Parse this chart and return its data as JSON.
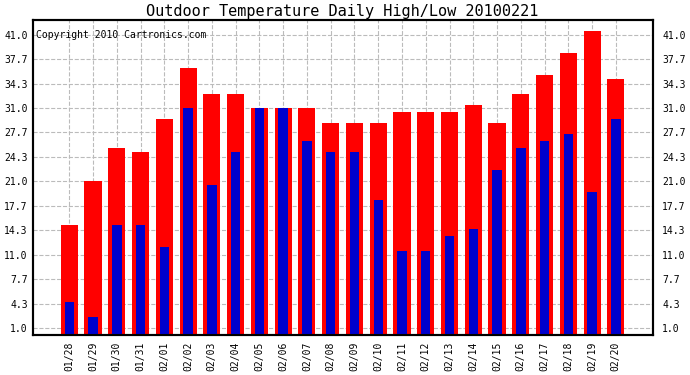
{
  "title": "Outdoor Temperature Daily High/Low 20100221",
  "copyright": "Copyright 2010 Cartronics.com",
  "dates": [
    "01/28",
    "01/29",
    "01/30",
    "01/31",
    "02/01",
    "02/02",
    "02/03",
    "02/04",
    "02/05",
    "02/06",
    "02/07",
    "02/08",
    "02/09",
    "02/10",
    "02/11",
    "02/12",
    "02/13",
    "02/14",
    "02/15",
    "02/16",
    "02/17",
    "02/18",
    "02/19",
    "02/20"
  ],
  "highs": [
    15.0,
    21.0,
    25.5,
    25.0,
    29.5,
    36.5,
    33.0,
    33.0,
    31.0,
    31.0,
    31.0,
    29.0,
    29.0,
    29.0,
    30.5,
    30.5,
    30.5,
    31.5,
    29.0,
    33.0,
    35.5,
    38.5,
    41.5,
    35.0
  ],
  "lows": [
    4.5,
    2.5,
    15.0,
    15.0,
    12.0,
    31.0,
    20.5,
    25.0,
    31.0,
    31.0,
    26.5,
    25.0,
    25.0,
    18.5,
    11.5,
    11.5,
    13.5,
    14.5,
    22.5,
    25.5,
    26.5,
    27.5,
    19.5,
    29.5
  ],
  "high_color": "#ff0000",
  "low_color": "#0000cc",
  "yticks": [
    1.0,
    4.3,
    7.7,
    11.0,
    14.3,
    17.7,
    21.0,
    24.3,
    27.7,
    31.0,
    34.3,
    37.7,
    41.0
  ],
  "ylim": [
    0,
    43
  ],
  "bg_color": "#ffffff",
  "plot_bg_color": "#ffffff",
  "grid_color": "#bbbbbb",
  "title_fontsize": 11,
  "copyright_fontsize": 7
}
